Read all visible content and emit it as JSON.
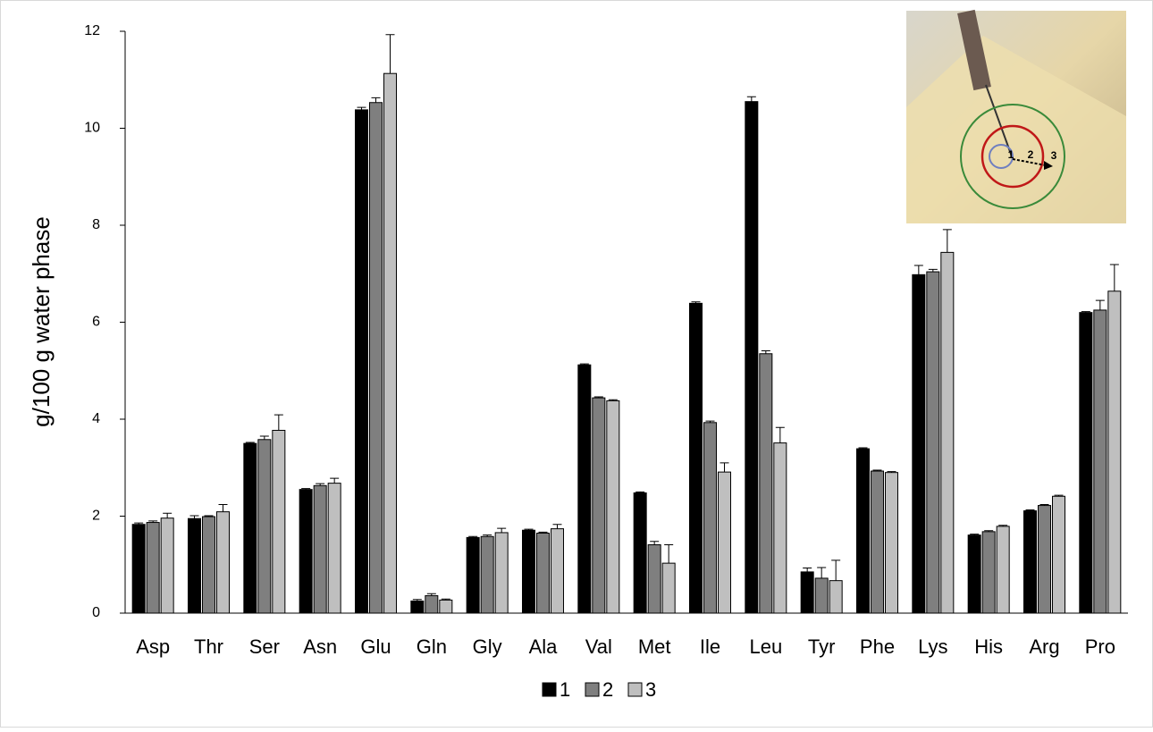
{
  "chart_data": {
    "type": "bar",
    "y_label": "g/100 g water phase",
    "categories": [
      "Asp",
      "Thr",
      "Ser",
      "Asn",
      "Glu",
      "Gln",
      "Gly",
      "Ala",
      "Val",
      "Met",
      "Ile",
      "Leu",
      "Tyr",
      "Phe",
      "Lys",
      "His",
      "Arg",
      "Pro"
    ],
    "series": [
      {
        "name": "1",
        "color": "#000000",
        "values": [
          1.83,
          1.95,
          3.5,
          2.55,
          10.38,
          0.25,
          1.56,
          1.71,
          5.12,
          2.48,
          6.39,
          10.55,
          0.85,
          3.39,
          6.98,
          1.61,
          2.11,
          6.2
        ],
        "errors": [
          0.03,
          0.06,
          0.02,
          0.02,
          0.05,
          0.03,
          0.02,
          0.02,
          0.02,
          0.02,
          0.03,
          0.1,
          0.08,
          0.02,
          0.19,
          0.02,
          0.02,
          0.02
        ]
      },
      {
        "name": "2",
        "color": "#7f7f7f",
        "values": [
          1.87,
          1.99,
          3.58,
          2.63,
          10.53,
          0.36,
          1.58,
          1.65,
          4.44,
          1.41,
          3.93,
          5.35,
          0.72,
          2.93,
          7.04,
          1.68,
          2.22,
          6.25
        ],
        "errors": [
          0.03,
          0.02,
          0.07,
          0.04,
          0.1,
          0.04,
          0.03,
          0.02,
          0.02,
          0.07,
          0.03,
          0.06,
          0.22,
          0.02,
          0.05,
          0.02,
          0.02,
          0.2
        ]
      },
      {
        "name": "3",
        "color": "#bfbfbf",
        "values": [
          1.96,
          2.09,
          3.77,
          2.68,
          11.13,
          0.27,
          1.66,
          1.74,
          4.38,
          1.03,
          2.91,
          3.51,
          0.67,
          2.9,
          7.44,
          1.79,
          2.41,
          6.64
        ],
        "errors": [
          0.1,
          0.15,
          0.32,
          0.1,
          0.8,
          0.02,
          0.09,
          0.09,
          0.02,
          0.38,
          0.19,
          0.32,
          0.42,
          0.02,
          0.47,
          0.02,
          0.02,
          0.55
        ]
      }
    ],
    "ylim": [
      0,
      12
    ],
    "yticks": [
      0,
      2,
      4,
      6,
      8,
      10,
      12
    ],
    "legend": "bottom"
  }
}
